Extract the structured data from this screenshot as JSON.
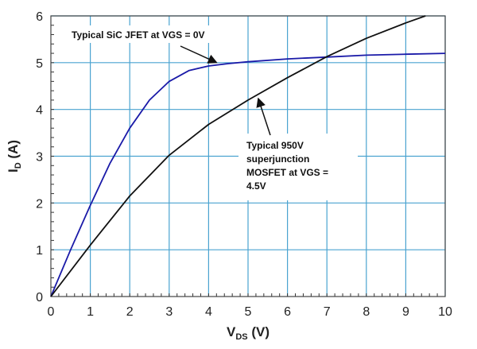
{
  "chart_data": {
    "type": "line",
    "xlabel": {
      "main": "V",
      "sub": "DS",
      "unit": " (V)"
    },
    "ylabel": {
      "main": "I",
      "sub": "D",
      "unit": " (A)"
    },
    "xlim": [
      0,
      10
    ],
    "ylim": [
      0,
      6
    ],
    "xticks": [
      0,
      1,
      2,
      3,
      4,
      5,
      6,
      7,
      8,
      9,
      10
    ],
    "yticks": [
      0,
      1,
      2,
      3,
      4,
      5,
      6
    ],
    "grid": true,
    "grid_color": "#4aa3d0",
    "series": [
      {
        "color": "#1a1aa8",
        "x": [
          0,
          0.5,
          1,
          1.5,
          2,
          2.5,
          3,
          3.5,
          4,
          4.5,
          5,
          6,
          7,
          8,
          9,
          10
        ],
        "y": [
          0,
          1,
          1.95,
          2.85,
          3.6,
          4.2,
          4.6,
          4.83,
          4.93,
          4.98,
          5.02,
          5.08,
          5.12,
          5.16,
          5.18,
          5.2
        ]
      },
      {
        "color": "#111111",
        "x": [
          0,
          1,
          2,
          3,
          4,
          5,
          6,
          7,
          8,
          9,
          9.5
        ],
        "y": [
          0,
          1.1,
          2.15,
          3.02,
          3.68,
          4.2,
          4.68,
          5.13,
          5.52,
          5.85,
          6
        ]
      }
    ],
    "annotations": [
      {
        "lines": [
          "Typical SiC JFET at VGS = 0V"
        ],
        "points_to": [
          4.2,
          4.97
        ]
      },
      {
        "lines": [
          "Typical 950V",
          "superjunction",
          "MOSFET at VGS =",
          "4.5V"
        ],
        "points_to": [
          5.2,
          4.3
        ]
      }
    ]
  }
}
